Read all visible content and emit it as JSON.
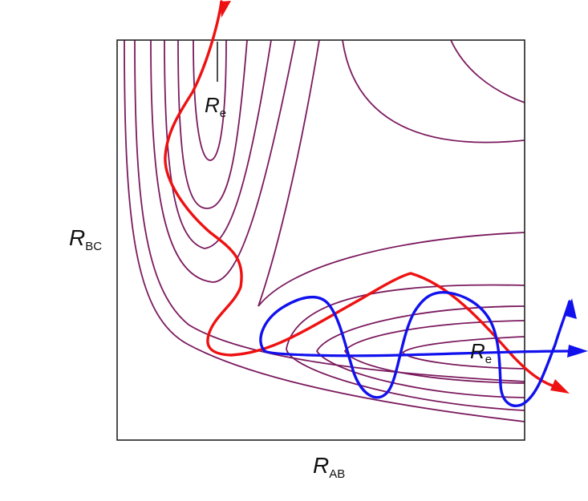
{
  "axes": {
    "x_label": "R",
    "x_sub": "AB",
    "y_label": "R",
    "y_sub": "BC"
  },
  "markers": {
    "re_top": "R",
    "re_top_sub": "e",
    "re_right": "R",
    "re_right_sub": "e"
  },
  "colors": {
    "contour": "#7b1a5e",
    "trajectory_red": "#ee1111",
    "trajectory_blue": "#1111ee",
    "frame": "#222222"
  }
}
